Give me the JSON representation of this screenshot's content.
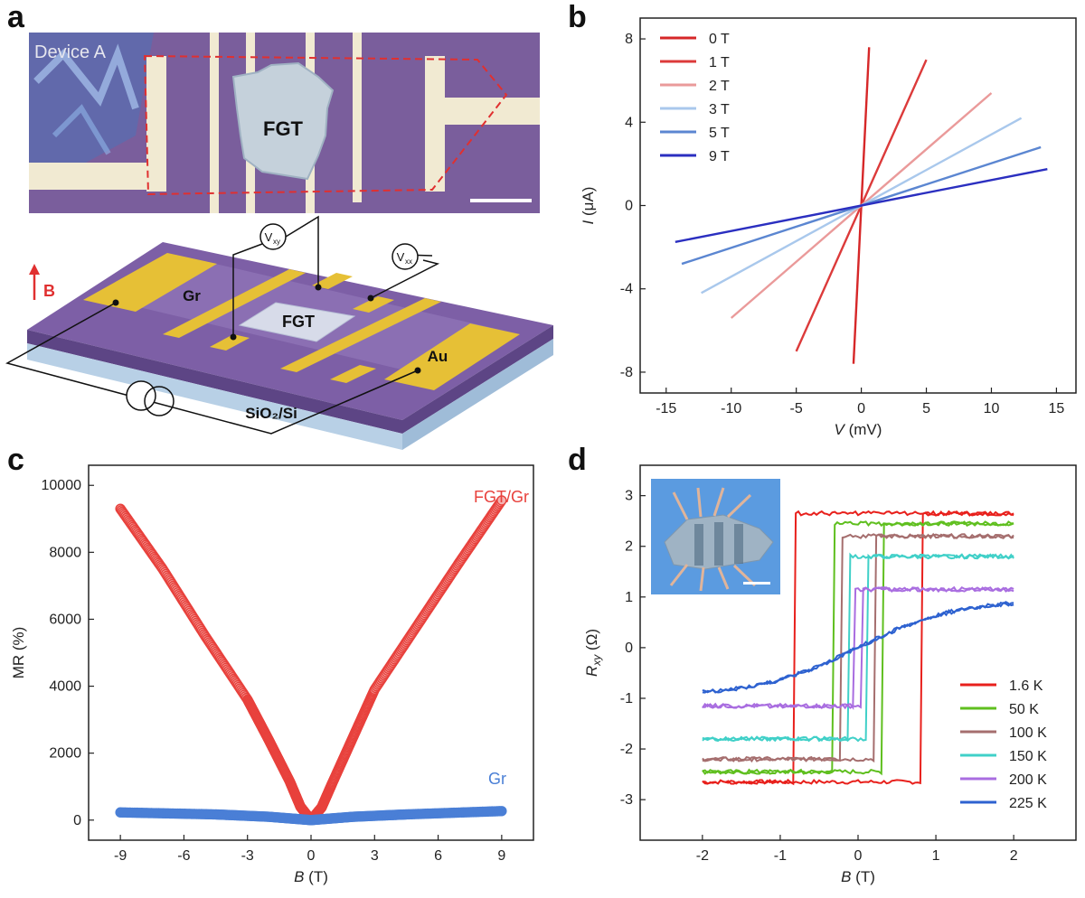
{
  "panels": {
    "a": {
      "letter": "a",
      "photo_label": "Device A",
      "flake_label": "FGT",
      "schematic": {
        "field_label": "B",
        "graphene_label": "Gr",
        "flake_label": "FGT",
        "gold_label": "Au",
        "substrate_label": "SiO₂/Si",
        "vxy_label": "V",
        "vxy_sub": "xy",
        "vxx_label": "V",
        "vxx_sub": "xx"
      }
    },
    "b": {
      "letter": "b"
    },
    "c": {
      "letter": "c"
    },
    "d": {
      "letter": "d"
    }
  },
  "chart_data": [
    {
      "panel": "b",
      "type": "line",
      "xlabel": "V",
      "xunit": " (mV)",
      "ylabel": "I",
      "yunit": " (μA)",
      "xlim": [
        -17,
        16.5
      ],
      "ylim": [
        -9,
        9
      ],
      "xticks": [
        -15,
        -10,
        -5,
        0,
        5,
        10,
        15
      ],
      "yticks": [
        -8,
        -4,
        0,
        4,
        8
      ],
      "legend_position": "top-left",
      "series": [
        {
          "name": "0 T",
          "color": "#d62728",
          "x": [
            -0.6,
            0.6
          ],
          "y": [
            -7.6,
            7.6
          ]
        },
        {
          "name": "1 T",
          "color": "#dc3a3a",
          "x": [
            -5,
            5
          ],
          "y": [
            -7,
            7
          ]
        },
        {
          "name": "2 T",
          "color": "#ea9a9a",
          "x": [
            -10,
            10
          ],
          "y": [
            -5.4,
            5.4
          ]
        },
        {
          "name": "3 T",
          "color": "#a9c8ec",
          "x": [
            -12.3,
            12.3
          ],
          "y": [
            -4.2,
            4.2
          ]
        },
        {
          "name": "5 T",
          "color": "#5b86d1",
          "x": [
            -13.8,
            13.8
          ],
          "y": [
            -2.8,
            2.8
          ]
        },
        {
          "name": "9 T",
          "color": "#2b2fc0",
          "x": [
            -14.3,
            14.3
          ],
          "y": [
            -1.75,
            1.75
          ]
        }
      ]
    },
    {
      "panel": "c",
      "type": "scatter",
      "xlabel": "B",
      "xunit": " (T)",
      "ylabel": "MR (%)",
      "xlim": [
        -10.5,
        10.5
      ],
      "ylim": [
        -600,
        10600
      ],
      "xticks": [
        -9,
        -6,
        -3,
        0,
        3,
        6,
        9
      ],
      "yticks": [
        0,
        2000,
        4000,
        6000,
        8000,
        10000
      ],
      "series": [
        {
          "name": "FGT/Gr",
          "color": "#e8413c",
          "x": [
            -9,
            -7,
            -5,
            -3,
            -2,
            -1,
            -0.5,
            0,
            0.5,
            1,
            2,
            3,
            5,
            7,
            9
          ],
          "y": [
            9300,
            7500,
            5500,
            3600,
            2400,
            1150,
            400,
            0,
            380,
            1100,
            2500,
            3900,
            5800,
            7700,
            9550
          ]
        },
        {
          "name": "Gr",
          "color": "#4a7fd6",
          "x": [
            -9,
            -4.5,
            -2,
            0,
            2,
            4.5,
            9
          ],
          "y": [
            230,
            170,
            100,
            0,
            100,
            170,
            270
          ]
        }
      ]
    },
    {
      "panel": "d",
      "type": "line",
      "xlabel": "B",
      "xunit": " (T)",
      "ylabel": "R",
      "ylabel_sub": "xy",
      "yunit": " (Ω)",
      "xlim": [
        -2.8,
        2.8
      ],
      "ylim": [
        -3.8,
        3.6
      ],
      "xticks": [
        -2,
        -1,
        0,
        1,
        2
      ],
      "yticks": [
        -3,
        -2,
        -1,
        0,
        1,
        2,
        3
      ],
      "legend_position": "bottom-right",
      "series": [
        {
          "name": "1.6 K",
          "color": "#e8201c",
          "sat": 2.65,
          "hc": 0.8
        },
        {
          "name": "50 K",
          "color": "#5fbf1f",
          "sat": 2.45,
          "hc": 0.3
        },
        {
          "name": "100 K",
          "color": "#a56e6e",
          "sat": 2.2,
          "hc": 0.22
        },
        {
          "name": "150 K",
          "color": "#40d0c8",
          "sat": 1.8,
          "hc": 0.12
        },
        {
          "name": "200 K",
          "color": "#a96de0",
          "sat": 1.15,
          "hc": 0.04
        },
        {
          "name": "225 K",
          "color": "#2e62d0",
          "sat": 0.95,
          "hc": 0
        }
      ]
    }
  ],
  "colors": {
    "substrate_purple": "#7d5fa6",
    "gold": "#e6c036",
    "frame_purple": "#7a5e9c"
  },
  "icons": [
    "current-source-icon",
    "field-arrow-icon"
  ]
}
